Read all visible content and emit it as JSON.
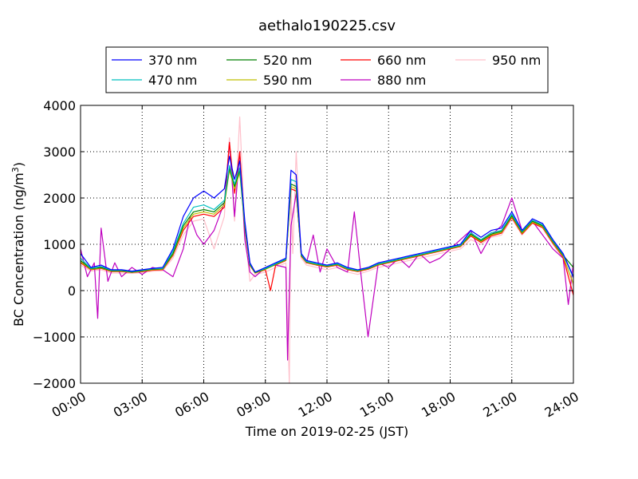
{
  "chart_data": {
    "type": "line",
    "title": "aethalo190225.csv",
    "xlabel": "Time on 2019-02-25 (JST)",
    "ylabel_base": "BC Concentration (ng/m",
    "ylabel_sup": "3",
    "ylabel_tail": ")",
    "xlim": [
      "00:00",
      "24:00"
    ],
    "ylim": [
      -2000,
      4000
    ],
    "x_ticks": [
      "00:00",
      "03:00",
      "06:00",
      "09:00",
      "12:00",
      "15:00",
      "18:00",
      "21:00",
      "24:00"
    ],
    "y_ticks": [
      "4000",
      "3000",
      "2000",
      "1000",
      "0",
      "−1000",
      "−2000"
    ],
    "grid": true,
    "legend_position": "top-center",
    "series": [
      {
        "name": "370 nm",
        "color": "#0000ff",
        "x": [
          "00:00",
          "00:30",
          "01:00",
          "01:30",
          "02:00",
          "02:30",
          "03:00",
          "03:30",
          "04:00",
          "04:30",
          "05:00",
          "05:30",
          "06:00",
          "06:30",
          "07:00",
          "07:15",
          "07:30",
          "07:45",
          "08:00",
          "08:15",
          "08:30",
          "09:00",
          "09:30",
          "10:00",
          "10:15",
          "10:30",
          "10:45",
          "11:00",
          "11:30",
          "12:00",
          "12:30",
          "13:00",
          "13:30",
          "14:00",
          "14:30",
          "15:00",
          "15:30",
          "16:00",
          "16:30",
          "17:00",
          "17:30",
          "18:00",
          "18:30",
          "19:00",
          "19:30",
          "20:00",
          "20:30",
          "21:00",
          "21:30",
          "22:00",
          "22:30",
          "23:00",
          "23:30",
          "24:00"
        ],
        "y": [
          800,
          500,
          550,
          450,
          450,
          420,
          450,
          480,
          500,
          900,
          1600,
          2000,
          2150,
          2000,
          2200,
          2900,
          2400,
          2800,
          1500,
          600,
          400,
          500,
          600,
          700,
          2600,
          2500,
          800,
          650,
          600,
          550,
          600,
          500,
          450,
          500,
          600,
          650,
          700,
          750,
          800,
          850,
          900,
          950,
          1000,
          1300,
          1150,
          1300,
          1350,
          1700,
          1300,
          1550,
          1450,
          1100,
          800,
          300
        ]
      },
      {
        "name": "470 nm",
        "color": "#00bfbf",
        "x": [
          "00:00",
          "00:30",
          "01:00",
          "01:30",
          "02:00",
          "02:30",
          "03:00",
          "03:30",
          "04:00",
          "04:30",
          "05:00",
          "05:30",
          "06:00",
          "06:30",
          "07:00",
          "07:15",
          "07:30",
          "07:45",
          "08:00",
          "08:15",
          "08:30",
          "09:00",
          "09:30",
          "10:00",
          "10:15",
          "10:30",
          "10:45",
          "11:00",
          "11:30",
          "12:00",
          "12:30",
          "13:00",
          "13:30",
          "14:00",
          "14:30",
          "15:00",
          "15:30",
          "16:00",
          "16:30",
          "17:00",
          "17:30",
          "18:00",
          "18:30",
          "19:00",
          "19:30",
          "20:00",
          "20:30",
          "21:00",
          "21:30",
          "22:00",
          "22:30",
          "23:00",
          "23:30",
          "24:00"
        ],
        "y": [
          700,
          480,
          520,
          440,
          440,
          410,
          440,
          470,
          480,
          850,
          1450,
          1800,
          1850,
          1750,
          1950,
          2700,
          2300,
          2650,
          1450,
          580,
          400,
          480,
          580,
          680,
          2400,
          2350,
          780,
          630,
          580,
          540,
          580,
          480,
          440,
          490,
          580,
          630,
          680,
          730,
          780,
          830,
          880,
          930,
          980,
          1250,
          1100,
          1250,
          1300,
          1650,
          1280,
          1520,
          1420,
          1080,
          780,
          280
        ]
      },
      {
        "name": "520 nm",
        "color": "#008000",
        "x": [
          "00:00",
          "00:30",
          "01:00",
          "01:30",
          "02:00",
          "02:30",
          "03:00",
          "03:30",
          "04:00",
          "04:30",
          "05:00",
          "05:30",
          "06:00",
          "06:30",
          "07:00",
          "07:15",
          "07:30",
          "07:45",
          "08:00",
          "08:15",
          "08:30",
          "09:00",
          "09:30",
          "10:00",
          "10:15",
          "10:30",
          "10:45",
          "11:00",
          "11:30",
          "12:00",
          "12:30",
          "13:00",
          "13:30",
          "14:00",
          "14:30",
          "15:00",
          "15:30",
          "16:00",
          "16:30",
          "17:00",
          "17:30",
          "18:00",
          "18:30",
          "19:00",
          "19:30",
          "20:00",
          "20:30",
          "21:00",
          "21:30",
          "22:00",
          "22:30",
          "23:00",
          "23:30",
          "24:00"
        ],
        "y": [
          650,
          470,
          500,
          430,
          430,
          400,
          430,
          460,
          470,
          800,
          1400,
          1700,
          1750,
          1700,
          1900,
          2650,
          2250,
          2600,
          1400,
          560,
          390,
          470,
          570,
          670,
          2300,
          2250,
          760,
          620,
          570,
          530,
          570,
          470,
          430,
          480,
          570,
          620,
          670,
          720,
          770,
          820,
          870,
          920,
          970,
          1220,
          1080,
          1220,
          1280,
          1620,
          1260,
          1500,
          1400,
          1060,
          760,
          500
        ]
      },
      {
        "name": "590 nm",
        "color": "#bfbf00",
        "x": [
          "00:00",
          "00:30",
          "01:00",
          "01:30",
          "02:00",
          "02:30",
          "03:00",
          "03:30",
          "04:00",
          "04:30",
          "05:00",
          "05:30",
          "06:00",
          "06:30",
          "07:00",
          "07:15",
          "07:30",
          "07:45",
          "08:00",
          "08:15",
          "08:30",
          "09:00",
          "09:30",
          "10:00",
          "10:15",
          "10:30",
          "10:45",
          "11:00",
          "11:30",
          "12:00",
          "12:30",
          "13:00",
          "13:30",
          "14:00",
          "14:30",
          "15:00",
          "15:30",
          "16:00",
          "16:30",
          "17:00",
          "17:30",
          "18:00",
          "18:30",
          "19:00",
          "19:30",
          "20:00",
          "20:30",
          "21:00",
          "21:30",
          "22:00",
          "22:30",
          "23:00",
          "23:30",
          "24:00"
        ],
        "y": [
          620,
          460,
          490,
          420,
          420,
          395,
          420,
          450,
          460,
          780,
          1350,
          1650,
          1700,
          1650,
          1850,
          2600,
          2200,
          2550,
          1380,
          550,
          380,
          460,
          560,
          660,
          2250,
          2200,
          750,
          610,
          560,
          520,
          560,
          460,
          420,
          470,
          560,
          610,
          660,
          710,
          760,
          810,
          860,
          910,
          960,
          1200,
          1060,
          1200,
          1260,
          1600,
          1240,
          1480,
          1380,
          1040,
          740,
          150
        ]
      },
      {
        "name": "660 nm",
        "color": "#ff0000",
        "x": [
          "00:00",
          "00:30",
          "01:00",
          "01:30",
          "02:00",
          "02:30",
          "03:00",
          "03:30",
          "04:00",
          "04:30",
          "05:00",
          "05:30",
          "06:00",
          "06:30",
          "07:00",
          "07:15",
          "07:30",
          "07:45",
          "08:00",
          "08:15",
          "08:30",
          "09:00",
          "09:15",
          "09:30",
          "10:00",
          "10:15",
          "10:30",
          "10:45",
          "11:00",
          "11:30",
          "12:00",
          "12:30",
          "13:00",
          "13:30",
          "14:00",
          "14:30",
          "15:00",
          "15:30",
          "16:00",
          "16:30",
          "17:00",
          "17:30",
          "18:00",
          "18:30",
          "19:00",
          "19:30",
          "20:00",
          "20:30",
          "21:00",
          "21:30",
          "22:00",
          "22:30",
          "23:00",
          "23:30",
          "24:00"
        ],
        "y": [
          600,
          450,
          480,
          410,
          410,
          390,
          410,
          440,
          450,
          760,
          1300,
          1600,
          1650,
          1600,
          1800,
          3200,
          2100,
          3000,
          1350,
          540,
          380,
          450,
          0,
          550,
          650,
          2200,
          2150,
          740,
          600,
          550,
          510,
          550,
          450,
          410,
          460,
          550,
          600,
          650,
          700,
          750,
          800,
          850,
          900,
          950,
          1180,
          1040,
          1180,
          1240,
          1580,
          1220,
          1460,
          1360,
          1020,
          720,
          -100
        ]
      },
      {
        "name": "880 nm",
        "color": "#bf00bf",
        "x": [
          "00:00",
          "00:20",
          "00:40",
          "00:50",
          "01:00",
          "01:20",
          "01:40",
          "02:00",
          "02:30",
          "03:00",
          "03:30",
          "04:00",
          "04:30",
          "05:00",
          "05:20",
          "05:40",
          "06:00",
          "06:30",
          "07:00",
          "07:15",
          "07:30",
          "07:45",
          "08:00",
          "08:15",
          "08:30",
          "09:00",
          "09:30",
          "10:00",
          "10:05",
          "10:15",
          "10:30",
          "10:45",
          "11:00",
          "11:20",
          "11:40",
          "12:00",
          "12:30",
          "13:00",
          "13:20",
          "13:40",
          "14:00",
          "14:30",
          "15:00",
          "15:30",
          "16:00",
          "16:30",
          "17:00",
          "17:30",
          "18:00",
          "18:30",
          "19:00",
          "19:30",
          "20:00",
          "20:30",
          "21:00",
          "21:30",
          "22:00",
          "22:30",
          "23:00",
          "23:30",
          "23:45",
          "24:00"
        ],
        "y": [
          900,
          300,
          600,
          -600,
          1350,
          200,
          600,
          300,
          500,
          350,
          500,
          450,
          300,
          900,
          1600,
          1200,
          1000,
          1300,
          1900,
          3200,
          1600,
          3000,
          1100,
          400,
          300,
          500,
          550,
          500,
          -1500,
          1400,
          2100,
          800,
          600,
          1200,
          400,
          900,
          500,
          400,
          1700,
          300,
          -1000,
          600,
          500,
          700,
          500,
          800,
          600,
          700,
          900,
          1100,
          1300,
          800,
          1200,
          1400,
          2000,
          1300,
          1500,
          1200,
          900,
          700,
          -300,
          600
        ]
      },
      {
        "name": "950 nm",
        "color": "#ffc0cb",
        "x": [
          "00:00",
          "00:30",
          "01:00",
          "01:30",
          "02:00",
          "02:30",
          "03:00",
          "03:30",
          "04:00",
          "04:30",
          "05:00",
          "05:30",
          "06:00",
          "06:30",
          "07:00",
          "07:15",
          "07:30",
          "07:45",
          "08:00",
          "08:15",
          "08:30",
          "09:00",
          "09:30",
          "10:00",
          "10:10",
          "10:15",
          "10:20",
          "10:30",
          "10:45",
          "11:00",
          "11:30",
          "12:00",
          "12:30",
          "13:00",
          "13:30",
          "14:00",
          "14:30",
          "15:00",
          "15:30",
          "16:00",
          "16:30",
          "17:00",
          "17:30",
          "18:00",
          "18:30",
          "19:00",
          "19:30",
          "20:00",
          "20:30",
          "21:00",
          "21:30",
          "22:00",
          "22:30",
          "23:00",
          "23:30",
          "24:00"
        ],
        "y": [
          550,
          420,
          450,
          380,
          380,
          370,
          390,
          420,
          430,
          700,
          1200,
          1500,
          1550,
          900,
          1600,
          3300,
          1500,
          3750,
          1300,
          200,
          350,
          400,
          500,
          600,
          -2000,
          2300,
          800,
          3000,
          700,
          550,
          500,
          450,
          500,
          400,
          350,
          420,
          500,
          550,
          600,
          650,
          700,
          750,
          800,
          850,
          900,
          1100,
          1000,
          1150,
          1200,
          1550,
          1200,
          1450,
          1350,
          1000,
          700,
          100
        ]
      }
    ]
  }
}
